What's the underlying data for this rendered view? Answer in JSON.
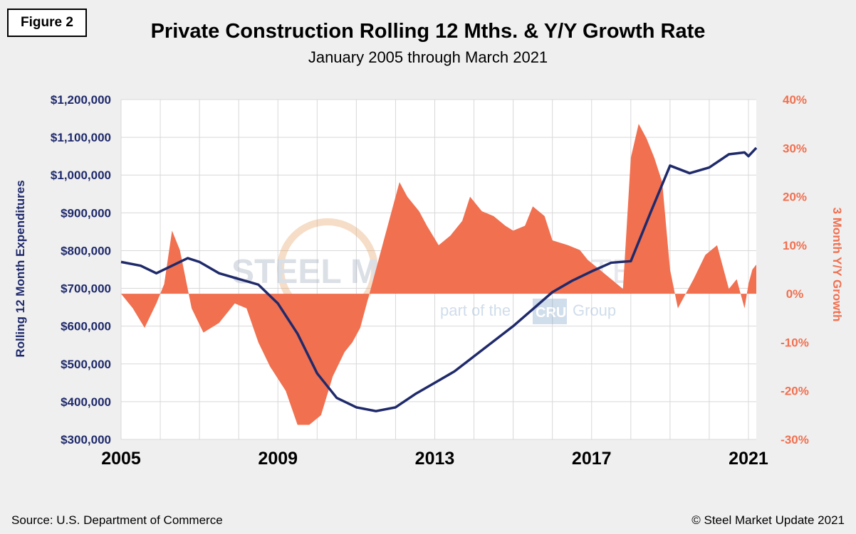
{
  "figure_label": "Figure 2",
  "title": "Private Construction Rolling 12 Mths. & Y/Y Growth Rate",
  "subtitle": "January 2005 through March 2021",
  "source": "Source: U.S. Department of Commerce",
  "copyright": "© Steel Market Update 2021",
  "watermark": {
    "text_bold": "STEEL MARKET",
    "text_light": "UPDATE",
    "tagline_pre": "part of the",
    "tagline_brand": "CRU",
    "tagline_post": "Group"
  },
  "colors": {
    "line": "#1f2a6b",
    "area": "#f07050",
    "grid": "#d8d8d8",
    "plot_bg": "#ffffff"
  },
  "chart_data": {
    "type": "line",
    "x_tick_labels": [
      "2005",
      "2009",
      "2013",
      "2017",
      "2021"
    ],
    "x_ticks": [
      2005,
      2009,
      2013,
      2017,
      2021
    ],
    "x_range": [
      2005,
      2021.2
    ],
    "y_left": {
      "label": "Rolling 12 Month Expenditures",
      "range": [
        300000,
        1200000
      ],
      "ticks": [
        300000,
        400000,
        500000,
        600000,
        700000,
        800000,
        900000,
        1000000,
        1100000,
        1200000
      ],
      "tick_labels": [
        "$300,000",
        "$400,000",
        "$500,000",
        "$600,000",
        "$700,000",
        "$800,000",
        "$900,000",
        "$1,000,000",
        "$1,100,000",
        "$1,200,000"
      ]
    },
    "y_right": {
      "label": "3 Month Y/Y Growth",
      "range": [
        -30,
        40
      ],
      "ticks": [
        -30,
        -20,
        -10,
        0,
        10,
        20,
        30,
        40
      ],
      "tick_labels": [
        "-30%",
        "-20%",
        "-10%",
        "0%",
        "10%",
        "20%",
        "30%",
        "40%"
      ]
    },
    "series": [
      {
        "axis": "left",
        "kind": "line",
        "x": [
          2005.0,
          2005.5,
          2005.9,
          2006.3,
          2006.7,
          2007.0,
          2007.5,
          2008.0,
          2008.5,
          2009.0,
          2009.5,
          2010.0,
          2010.5,
          2011.0,
          2011.5,
          2012.0,
          2012.5,
          2013.0,
          2013.5,
          2014.0,
          2014.5,
          2015.0,
          2015.5,
          2016.0,
          2016.5,
          2017.0,
          2017.5,
          2018.0,
          2018.5,
          2019.0,
          2019.5,
          2020.0,
          2020.5,
          2020.9,
          2021.0,
          2021.2
        ],
        "values": [
          770000,
          760000,
          740000,
          760000,
          780000,
          770000,
          740000,
          725000,
          710000,
          660000,
          580000,
          475000,
          410000,
          385000,
          375000,
          385000,
          420000,
          450000,
          480000,
          520000,
          560000,
          600000,
          645000,
          690000,
          720000,
          745000,
          768000,
          772000,
          900000,
          1025000,
          1005000,
          1020000,
          1055000,
          1060000,
          1050000,
          1072000
        ]
      },
      {
        "axis": "right",
        "kind": "area",
        "x": [
          2005.0,
          2005.3,
          2005.6,
          2005.9,
          2006.1,
          2006.3,
          2006.5,
          2006.8,
          2007.1,
          2007.5,
          2007.9,
          2008.2,
          2008.5,
          2008.8,
          2009.2,
          2009.5,
          2009.8,
          2010.1,
          2010.4,
          2010.7,
          2010.9,
          2011.1,
          2011.4,
          2011.7,
          2011.9,
          2012.1,
          2012.3,
          2012.6,
          2012.8,
          2013.1,
          2013.4,
          2013.7,
          2013.9,
          2014.2,
          2014.5,
          2014.8,
          2015.0,
          2015.3,
          2015.5,
          2015.8,
          2016.0,
          2016.4,
          2016.7,
          2016.9,
          2017.2,
          2017.5,
          2017.8,
          2018.0,
          2018.2,
          2018.4,
          2018.6,
          2018.8,
          2019.0,
          2019.2,
          2019.4,
          2019.6,
          2019.9,
          2020.2,
          2020.5,
          2020.7,
          2020.9,
          2021.0,
          2021.1,
          2021.2
        ],
        "values": [
          0,
          -3,
          -7,
          -2,
          2,
          13,
          9,
          -3,
          -8,
          -6,
          -2,
          -3,
          -10,
          -15,
          -20,
          -27,
          -27,
          -25,
          -17,
          -12,
          -10,
          -7,
          2,
          11,
          17,
          23,
          20,
          17,
          14,
          10,
          12,
          15,
          20,
          17,
          16,
          14,
          13,
          14,
          18,
          16,
          11,
          10,
          9,
          7,
          5,
          3,
          1,
          28,
          35,
          32,
          28,
          23,
          5,
          -3,
          0,
          3,
          8,
          10,
          1,
          3,
          -3,
          2,
          5,
          6
        ]
      }
    ]
  }
}
